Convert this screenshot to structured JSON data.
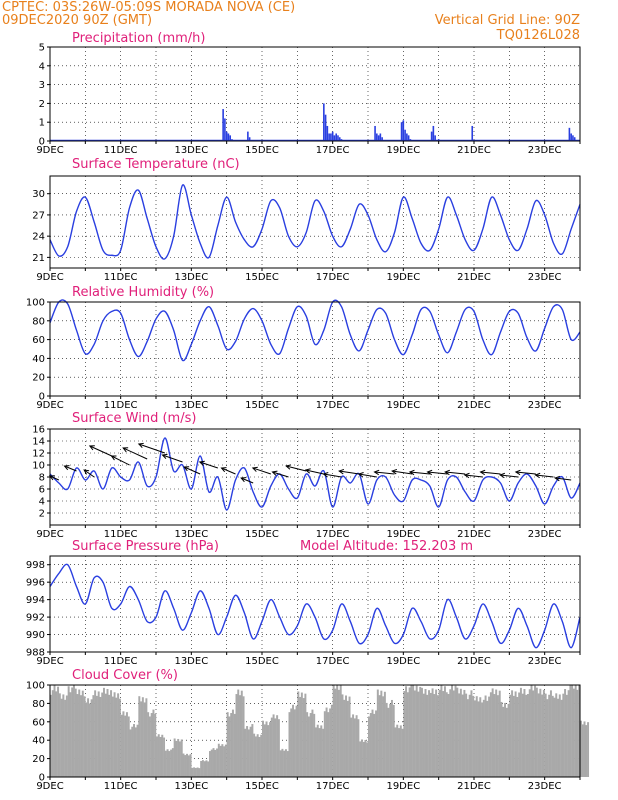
{
  "header": {
    "line1_left": "CPTEC:   03S:26W-05:09S   MORADA NOVA (CE)",
    "line2_left": "09DEC2020 90Z (GMT)",
    "line1_right": "Vertical Grid Line: 90Z",
    "line2_right": "TQ0126L028"
  },
  "colors": {
    "series": "#2a3fe0",
    "header": "#e8801c",
    "title": "#e0207a",
    "cloud": "#a9a9a9",
    "wind_arrow": "#000000"
  },
  "x_axis": {
    "labels": [
      "9DEC",
      "11DEC",
      "13DEC",
      "15DEC",
      "17DEC",
      "19DEC",
      "21DEC",
      "23DEC"
    ],
    "start_day": 9,
    "end_day": 24
  },
  "chart_data": [
    {
      "type": "bar",
      "title": "Precipitation (mm/h)",
      "ylim": [
        0,
        5
      ],
      "yticks": [
        "0",
        "1",
        "2",
        "3",
        "4",
        "5"
      ],
      "x": [
        13.9,
        13.95,
        14.0,
        14.05,
        14.1,
        14.15,
        14.6,
        14.65,
        16.75,
        16.8,
        16.85,
        16.9,
        16.95,
        17.0,
        17.05,
        17.1,
        17.15,
        17.2,
        17.25,
        18.2,
        18.25,
        18.3,
        18.35,
        18.4,
        18.95,
        19.0,
        19.05,
        19.1,
        19.15,
        19.2,
        19.8,
        19.85,
        19.9,
        20.0,
        20.95,
        23.7,
        23.75,
        23.8,
        23.85
      ],
      "values": [
        1.7,
        1.2,
        0.5,
        0.4,
        0.3,
        0.1,
        0.5,
        0.2,
        2.0,
        1.4,
        0.8,
        0.4,
        0.4,
        0.5,
        0.3,
        0.4,
        0.3,
        0.2,
        0.1,
        0.8,
        0.4,
        0.3,
        0.4,
        0.2,
        1.0,
        1.1,
        0.6,
        0.4,
        0.3,
        0.1,
        0.5,
        0.8,
        0.3,
        0.1,
        0.8,
        0.7,
        0.4,
        0.3,
        0.2
      ]
    },
    {
      "type": "line",
      "title": "Surface Temperature (nC)",
      "ylim": [
        19.5,
        32.5
      ],
      "yticks": [
        "21",
        "24",
        "27",
        "30"
      ],
      "x": [
        9.0,
        9.25,
        9.5,
        9.75,
        10.0,
        10.25,
        10.5,
        10.75,
        11.0,
        11.25,
        11.5,
        11.75,
        12.0,
        12.25,
        12.5,
        12.75,
        13.0,
        13.25,
        13.5,
        13.75,
        14.0,
        14.25,
        14.5,
        14.75,
        15.0,
        15.25,
        15.5,
        15.75,
        16.0,
        16.25,
        16.5,
        16.75,
        17.0,
        17.25,
        17.5,
        17.75,
        18.0,
        18.25,
        18.5,
        18.75,
        19.0,
        19.25,
        19.5,
        19.75,
        20.0,
        20.25,
        20.5,
        20.75,
        21.0,
        21.25,
        21.5,
        21.75,
        22.0,
        22.25,
        22.5,
        22.75,
        23.0,
        23.25,
        23.5,
        23.75,
        24.0
      ],
      "values": [
        23.5,
        21.2,
        22.5,
        27.5,
        29.5,
        26.0,
        22.0,
        21.3,
        22.0,
        28.0,
        30.5,
        26.5,
        22.5,
        20.8,
        24.0,
        31.2,
        27.0,
        23.0,
        21.0,
        25.5,
        29.5,
        26.0,
        23.5,
        22.5,
        25.0,
        29.0,
        28.0,
        24.0,
        22.5,
        24.5,
        29.0,
        27.5,
        24.0,
        22.5,
        25.0,
        28.5,
        27.0,
        23.5,
        21.8,
        24.5,
        29.5,
        26.5,
        23.0,
        22.0,
        25.0,
        29.5,
        27.0,
        23.5,
        22.0,
        25.0,
        29.5,
        27.0,
        23.5,
        22.0,
        25.0,
        29.0,
        27.0,
        23.0,
        21.5,
        25.0,
        28.5
      ]
    },
    {
      "type": "line",
      "title": "Relative Humidity (%)",
      "ylim": [
        0,
        100
      ],
      "yticks": [
        "0",
        "20",
        "40",
        "60",
        "80",
        "100"
      ],
      "x": [
        9.0,
        9.25,
        9.5,
        9.75,
        10.0,
        10.25,
        10.5,
        10.75,
        11.0,
        11.25,
        11.5,
        11.75,
        12.0,
        12.25,
        12.5,
        12.75,
        13.0,
        13.25,
        13.5,
        13.75,
        14.0,
        14.25,
        14.5,
        14.75,
        15.0,
        15.25,
        15.5,
        15.75,
        16.0,
        16.25,
        16.5,
        16.75,
        17.0,
        17.25,
        17.5,
        17.75,
        18.0,
        18.25,
        18.5,
        18.75,
        19.0,
        19.25,
        19.5,
        19.75,
        20.0,
        20.25,
        20.5,
        20.75,
        21.0,
        21.25,
        21.5,
        21.75,
        22.0,
        22.25,
        22.5,
        22.75,
        23.0,
        23.25,
        23.5,
        23.75,
        24.0
      ],
      "values": [
        78,
        100,
        98,
        70,
        45,
        55,
        80,
        90,
        88,
        60,
        42,
        58,
        82,
        90,
        70,
        38,
        55,
        80,
        95,
        75,
        50,
        58,
        82,
        93,
        80,
        55,
        45,
        72,
        95,
        85,
        55,
        70,
        100,
        95,
        65,
        48,
        70,
        92,
        88,
        60,
        44,
        65,
        92,
        90,
        65,
        46,
        68,
        92,
        90,
        60,
        44,
        68,
        90,
        88,
        62,
        48,
        72,
        95,
        92,
        60,
        68
      ]
    },
    {
      "type": "line",
      "title": "Surface Wind (m/s)",
      "ylim": [
        0,
        16
      ],
      "yticks": [
        "2",
        "4",
        "6",
        "8",
        "10",
        "12",
        "14",
        "16"
      ],
      "x": [
        9.0,
        9.25,
        9.5,
        9.75,
        10.0,
        10.25,
        10.5,
        10.75,
        11.0,
        11.25,
        11.5,
        11.75,
        12.0,
        12.25,
        12.5,
        12.75,
        13.0,
        13.25,
        13.5,
        13.75,
        14.0,
        14.25,
        14.5,
        14.75,
        15.0,
        15.25,
        15.5,
        15.75,
        16.0,
        16.25,
        16.5,
        16.75,
        17.0,
        17.25,
        17.5,
        17.75,
        18.0,
        18.25,
        18.5,
        18.75,
        19.0,
        19.25,
        19.5,
        19.75,
        20.0,
        20.25,
        20.5,
        20.75,
        21.0,
        21.25,
        21.5,
        21.75,
        22.0,
        22.25,
        22.5,
        22.75,
        23.0,
        23.25,
        23.5,
        23.75,
        24.0
      ],
      "values": [
        8.5,
        7.0,
        6.0,
        9.5,
        7.5,
        9.0,
        6.0,
        9.5,
        8.0,
        7.5,
        10.5,
        6.5,
        8.0,
        14.5,
        9.0,
        10.0,
        6.0,
        11.5,
        5.5,
        8.0,
        2.5,
        7.5,
        9.5,
        5.5,
        3.0,
        6.5,
        8.5,
        6.0,
        4.5,
        8.5,
        6.5,
        9.0,
        3.0,
        8.0,
        7.0,
        8.5,
        3.5,
        7.5,
        8.0,
        5.0,
        4.0,
        7.5,
        7.5,
        6.5,
        3.0,
        7.5,
        8.0,
        5.5,
        4.0,
        7.5,
        8.0,
        7.0,
        4.0,
        7.0,
        8.5,
        6.5,
        3.5,
        6.5,
        8.0,
        4.5,
        7.0
      ]
    },
    {
      "type": "line",
      "title": "Surface Pressure (hPa)",
      "subtitle": "Model Altitude: 152.203 m",
      "ylim": [
        988,
        999
      ],
      "yticks": [
        "988",
        "990",
        "992",
        "994",
        "996",
        "998"
      ],
      "x": [
        9.0,
        9.25,
        9.5,
        9.75,
        10.0,
        10.25,
        10.5,
        10.75,
        11.0,
        11.25,
        11.5,
        11.75,
        12.0,
        12.25,
        12.5,
        12.75,
        13.0,
        13.25,
        13.5,
        13.75,
        14.0,
        14.25,
        14.5,
        14.75,
        15.0,
        15.25,
        15.5,
        15.75,
        16.0,
        16.25,
        16.5,
        16.75,
        17.0,
        17.25,
        17.5,
        17.75,
        18.0,
        18.25,
        18.5,
        18.75,
        19.0,
        19.25,
        19.5,
        19.75,
        20.0,
        20.25,
        20.5,
        20.75,
        21.0,
        21.25,
        21.5,
        21.75,
        22.0,
        22.25,
        22.5,
        22.75,
        23.0,
        23.25,
        23.5,
        23.75,
        24.0
      ],
      "values": [
        995.5,
        997.0,
        998.0,
        995.5,
        993.5,
        996.5,
        996.0,
        993.0,
        993.5,
        995.5,
        994.0,
        991.5,
        992.0,
        995.0,
        993.0,
        990.5,
        992.5,
        995.0,
        993.0,
        990.0,
        992.0,
        994.5,
        992.5,
        989.5,
        991.5,
        994.0,
        992.0,
        990.0,
        991.0,
        993.5,
        992.0,
        989.5,
        990.5,
        993.5,
        991.5,
        989.0,
        990.0,
        993.0,
        991.0,
        989.0,
        990.0,
        993.0,
        991.5,
        989.5,
        990.5,
        994.0,
        992.0,
        989.5,
        991.0,
        993.5,
        991.5,
        989.0,
        990.5,
        993.0,
        991.0,
        988.5,
        990.5,
        993.5,
        991.5,
        988.5,
        992.0
      ]
    },
    {
      "type": "area",
      "title": "Cloud Cover (%)",
      "ylim": [
        0,
        100
      ],
      "yticks": [
        "0",
        "20",
        "40",
        "60",
        "80",
        "100"
      ],
      "x": [
        9.0,
        9.25,
        9.5,
        9.75,
        10.0,
        10.25,
        10.5,
        10.75,
        11.0,
        11.25,
        11.5,
        11.75,
        12.0,
        12.25,
        12.5,
        12.75,
        13.0,
        13.25,
        13.5,
        13.75,
        14.0,
        14.25,
        14.5,
        14.75,
        15.0,
        15.25,
        15.5,
        15.75,
        16.0,
        16.25,
        16.5,
        16.75,
        17.0,
        17.25,
        17.5,
        17.75,
        18.0,
        18.25,
        18.5,
        18.75,
        19.0,
        19.25,
        19.5,
        19.75,
        20.0,
        20.25,
        20.5,
        20.75,
        21.0,
        21.25,
        21.5,
        21.75,
        22.0,
        22.25,
        22.5,
        22.75,
        23.0,
        23.25,
        23.5,
        23.75,
        24.0
      ],
      "values": [
        95,
        88,
        98,
        92,
        85,
        90,
        95,
        88,
        70,
        55,
        85,
        70,
        45,
        30,
        40,
        25,
        10,
        18,
        30,
        35,
        70,
        92,
        55,
        45,
        60,
        65,
        30,
        75,
        90,
        70,
        55,
        75,
        98,
        88,
        65,
        40,
        70,
        92,
        80,
        55,
        98,
        96,
        95,
        92,
        98,
        96,
        94,
        90,
        85,
        88,
        92,
        80,
        90,
        95,
        96,
        94,
        90,
        88,
        95,
        98,
        60
      ]
    }
  ],
  "wind_vectors": {
    "x": [
      9.25,
      9.75,
      10.25,
      10.75,
      11.25,
      11.75,
      12.25,
      12.75,
      13.25,
      13.75,
      14.25,
      14.75,
      15.25,
      15.75,
      16.25,
      16.75,
      17.25,
      17.75,
      18.25,
      18.75,
      19.25,
      19.75,
      20.25,
      20.75,
      21.25,
      21.75,
      22.25,
      22.75,
      23.25,
      23.75
    ],
    "speed": [
      7.5,
      9.0,
      8.0,
      11.5,
      10.0,
      11.0,
      12.0,
      10.5,
      8.5,
      9.5,
      8.5,
      7.0,
      8.5,
      8.0,
      9.0,
      8.5,
      8.0,
      8.5,
      8.0,
      8.5,
      8.5,
      8.5,
      8.5,
      8.5,
      8.0,
      8.5,
      8.0,
      8.5,
      8.0,
      7.5
    ],
    "dx": [
      -9,
      -12,
      -10,
      -22,
      -18,
      -24,
      -26,
      -20,
      -16,
      -18,
      -14,
      -12,
      -18,
      -16,
      -20,
      -18,
      -18,
      -20,
      -18,
      -20,
      -20,
      -20,
      -20,
      -20,
      -18,
      -20,
      -18,
      -20,
      -18,
      -16
    ],
    "dy": [
      -4,
      -5,
      -7,
      -10,
      -9,
      -11,
      -9,
      -7,
      -7,
      -6,
      -6,
      -5,
      -6,
      -5,
      -5,
      -4,
      -3,
      -3,
      -3,
      -2,
      -3,
      -2,
      -2,
      -2,
      -2,
      -2,
      -2,
      -2,
      -2,
      -2
    ]
  }
}
